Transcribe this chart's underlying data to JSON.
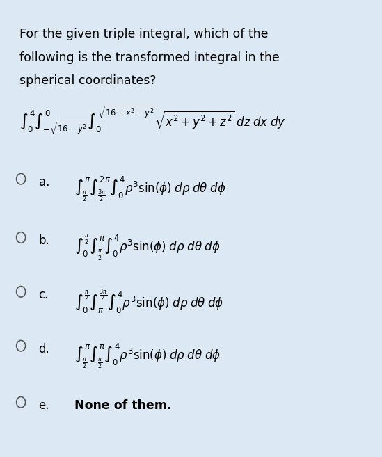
{
  "bg_color": "#dce9f5",
  "text_color": "#000000",
  "title_lines": [
    "For the given triple integral, which of the",
    "following is the transformed integral in the",
    "spherical coordinates?"
  ],
  "given_integral": "$\\int_0^4 \\int_{-\\sqrt{16-y^2}}^{0} \\int_0^{\\sqrt{16-x^2-y^2}} \\sqrt{x^2 + y^2 + z^2}\\; dz\\; dx\\; dy$",
  "options": [
    {
      "label": "a.",
      "integral": "$\\int_{\\frac{\\pi}{2}}^{\\pi} \\int_{\\frac{3\\pi}{2}}^{2\\pi} \\int_0^4 \\rho^3 \\sin(\\phi)\\; d\\rho\\; d\\theta\\; d\\phi$"
    },
    {
      "label": "b.",
      "integral": "$\\int_0^{\\frac{\\pi}{2}} \\int_{\\frac{\\pi}{2}}^{\\pi} \\int_0^4 \\rho^3 \\sin(\\phi)\\; d\\rho\\; d\\theta\\; d\\phi$"
    },
    {
      "label": "c.",
      "integral": "$\\int_0^{\\frac{\\pi}{2}} \\int_{\\pi}^{\\frac{3\\pi}{2}} \\int_0^4 \\rho^3 \\sin(\\phi)\\; d\\rho\\; d\\theta\\; d\\phi$"
    },
    {
      "label": "d.",
      "integral": "$\\int_{\\frac{\\pi}{2}}^{\\pi} \\int_{\\frac{\\pi}{2}}^{\\pi} \\int_0^4 \\rho^3 \\sin(\\phi)\\; d\\rho\\; d\\theta\\; d\\phi$"
    },
    {
      "label": "e.",
      "text": "None of them."
    }
  ]
}
